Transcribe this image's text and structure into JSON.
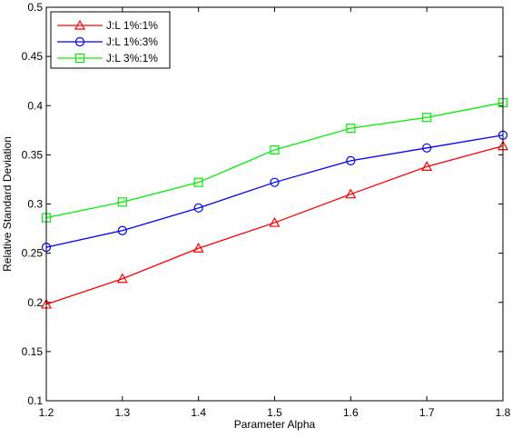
{
  "chart_data": {
    "type": "line",
    "xlabel": "Parameter Alpha",
    "ylabel": "Relative Standard Deviation",
    "xlim": [
      1.2,
      1.8
    ],
    "ylim": [
      0.1,
      0.5
    ],
    "x": [
      1.2,
      1.3,
      1.4,
      1.5,
      1.6,
      1.7,
      1.8
    ],
    "x_ticks": [
      "1.2",
      "1.3",
      "1.4",
      "1.5",
      "1.6",
      "1.7",
      "1.8"
    ],
    "y_ticks": [
      "0.1",
      "0.15",
      "0.2",
      "0.25",
      "0.3",
      "0.35",
      "0.4",
      "0.45",
      "0.5"
    ],
    "grid": false,
    "legend_position": "top-left",
    "series": [
      {
        "name": "J:L 1%:1%",
        "color": "#ff0000",
        "marker": "triangle",
        "values": [
          0.198,
          0.224,
          0.255,
          0.281,
          0.31,
          0.338,
          0.359
        ]
      },
      {
        "name": "J:L 1%:3%",
        "color": "#0000ff",
        "marker": "circle",
        "values": [
          0.256,
          0.273,
          0.296,
          0.322,
          0.344,
          0.357,
          0.37
        ]
      },
      {
        "name": "J:L 3%:1%",
        "color": "#00ee00",
        "marker": "square",
        "values": [
          0.286,
          0.302,
          0.322,
          0.355,
          0.377,
          0.388,
          0.403
        ]
      }
    ]
  }
}
